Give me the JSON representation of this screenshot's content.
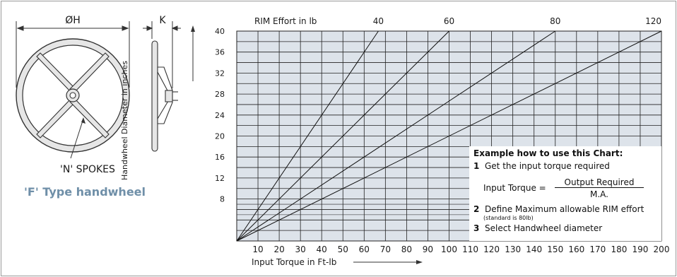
{
  "drawing": {
    "dim_h": "ØH",
    "dim_k": "K",
    "spokes_label": "'N' SPOKES",
    "caption": "'F' Type handwheel"
  },
  "chart_data": {
    "type": "line",
    "xlabel": "Input Torque in Ft-lb",
    "ylabel": "Handwheel Diameter in inches",
    "top_axis_label": "RIM Effort in lb",
    "xlim": [
      0,
      200
    ],
    "ylim": [
      0,
      40
    ],
    "x_ticks": [
      10,
      20,
      30,
      40,
      50,
      60,
      70,
      80,
      90,
      100,
      110,
      120,
      130,
      140,
      150,
      160,
      170,
      180,
      190,
      200
    ],
    "y_ticks": [
      8,
      12,
      16,
      20,
      24,
      28,
      32,
      36,
      40
    ],
    "grid": true,
    "series": [
      {
        "name": "40",
        "x": [
          0,
          66.7
        ],
        "y": [
          0,
          40
        ]
      },
      {
        "name": "60",
        "x": [
          0,
          100
        ],
        "y": [
          0,
          40
        ]
      },
      {
        "name": "80",
        "x": [
          0,
          150
        ],
        "y": [
          0,
          40
        ]
      },
      {
        "name": "120",
        "x": [
          0,
          200
        ],
        "y": [
          0,
          40
        ]
      }
    ],
    "top_labels": [
      {
        "text": "40",
        "x": 66.7
      },
      {
        "text": "60",
        "x": 100
      },
      {
        "text": "80",
        "x": 150
      },
      {
        "text": "120",
        "x": 200
      }
    ]
  },
  "example": {
    "title": "Example how to use this Chart:",
    "step1_num": "1",
    "step1": "Get the input torque required",
    "eq_lhs": "Input Torque =",
    "eq_num": "Output Required",
    "eq_den": "M.A.",
    "step2_num": "2",
    "step2": "Define Maximum allowable RIM effort",
    "step2_note": "(standard is 80lb)",
    "step3_num": "3",
    "step3": "Select Handwheel diameter"
  },
  "colors": {
    "grid_fill": "#dde3ea",
    "caption": "#6f8fa8",
    "wheel_fill": "#e6e6e6"
  }
}
